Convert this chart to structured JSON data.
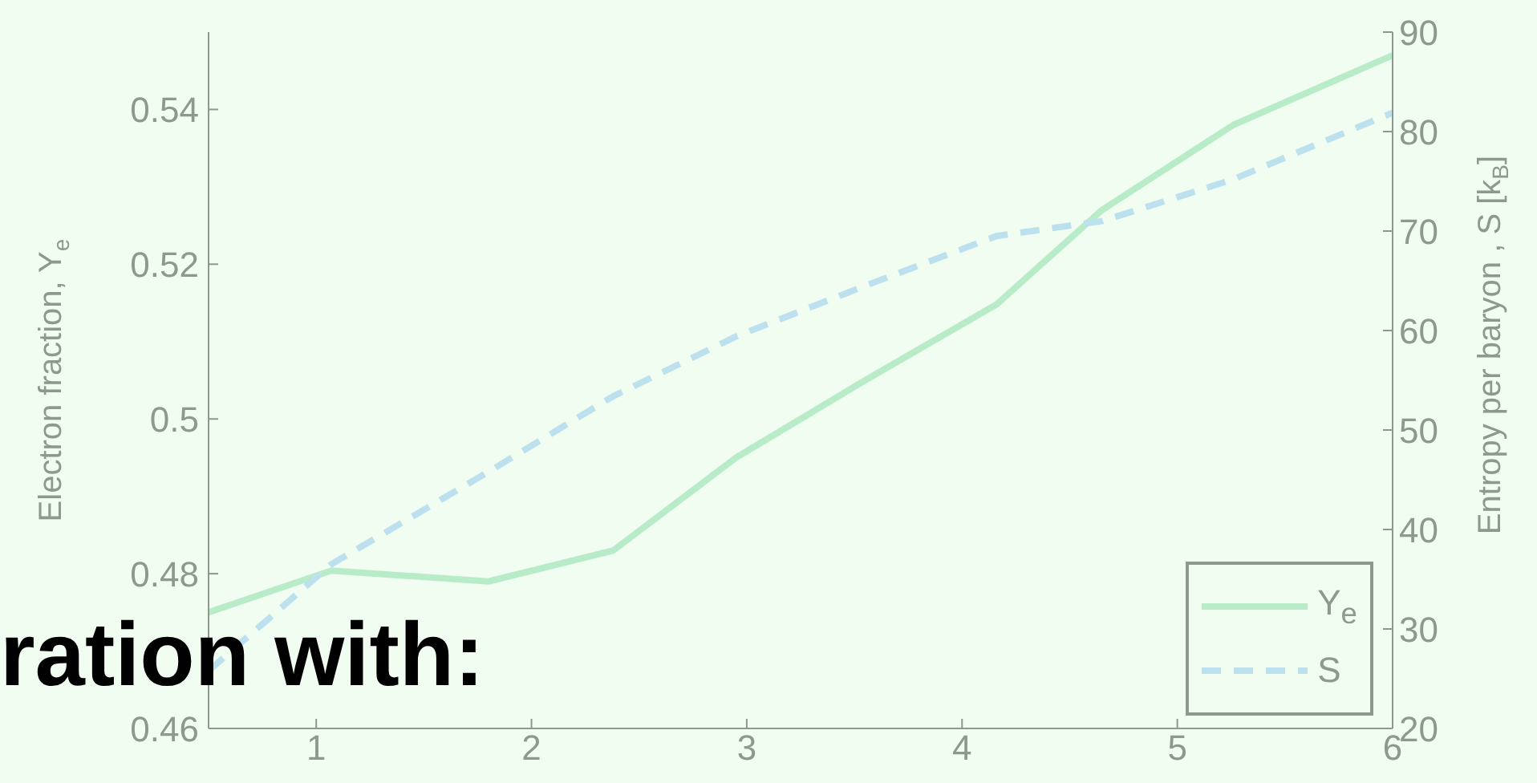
{
  "chart_data": {
    "type": "line",
    "ylabel": "Electron fraction, Y$_{e}$",
    "y2label": "Entropy per baryon , S [k$_{B}$]",
    "x": [
      0.5,
      1.07,
      1.8,
      2.38,
      2.95,
      3.55,
      4.16,
      4.65,
      5.26,
      6
    ],
    "series": [
      {
        "name": "Y$_{e}$",
        "color": "#b8ecc8",
        "line_style": "solid",
        "values": [
          0.475,
          0.4804,
          0.479,
          0.483,
          0.495,
          0.505,
          0.5148,
          0.527,
          0.538,
          0.547
        ]
      },
      {
        "name": "S",
        "color": "#bde0ef",
        "line_style": "dashed",
        "axis": "y2",
        "values": [
          25.8,
          36.5,
          45.8,
          53.4,
          59.4,
          64.5,
          69.5,
          71,
          75.2,
          81.9
        ]
      }
    ],
    "xlim": [
      0.5,
      6
    ],
    "xticks": [
      1,
      2,
      3,
      4,
      5,
      6
    ],
    "ylim": [
      0.46,
      0.55
    ],
    "yticks": [
      0.46,
      0.48,
      0.5,
      0.52,
      0.54
    ],
    "y2lim": [
      20,
      90
    ],
    "y2ticks": [
      20,
      30,
      40,
      50,
      60,
      70,
      80,
      90
    ],
    "grid": false,
    "legend": "bottom right",
    "marker": "none",
    "annotations": [
      "ration with:"
    ]
  }
}
